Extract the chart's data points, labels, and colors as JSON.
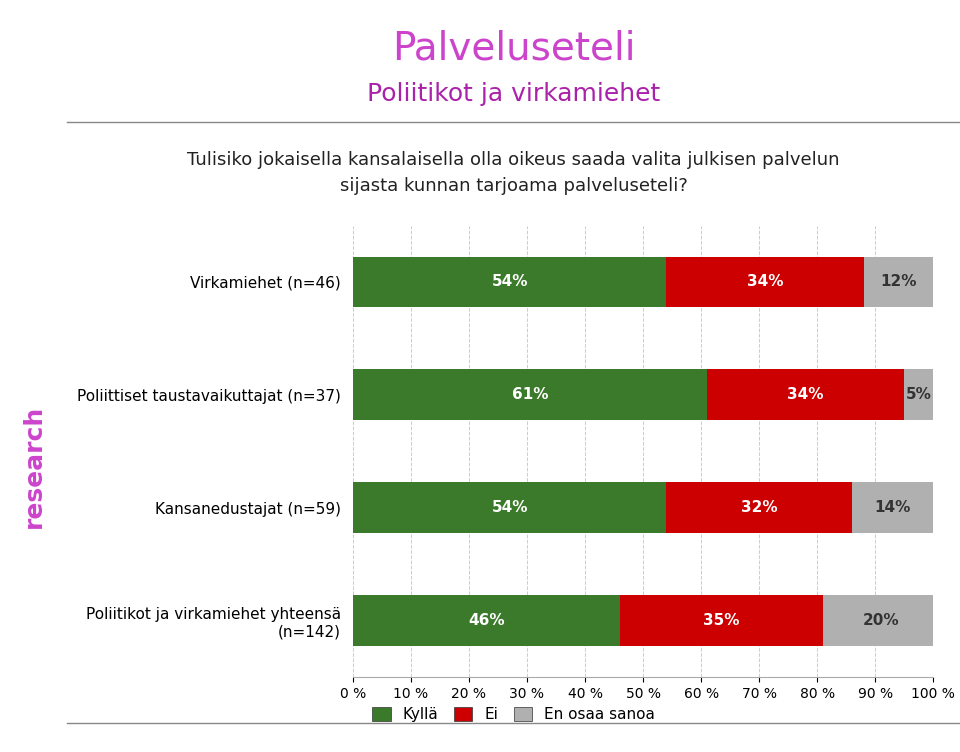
{
  "title": "Palveluseteli",
  "subtitle": "Poliitikot ja virkamiehet",
  "question": "Tulisiko jokaisella kansalaisella olla oikeus saada valita julkisen palvelun\nsijasta kunnan tarjoama palveluseteli?",
  "categories": [
    "Poliitikot ja virkamiehet yhteensä\n(n=142)",
    "Kansanedustajat (n=59)",
    "Poliittiset taustavaikuttajat (n=37)",
    "Virkamiehet (n=46)"
  ],
  "kylla": [
    54,
    61,
    54,
    46
  ],
  "ei": [
    34,
    34,
    32,
    35
  ],
  "en_osaa": [
    12,
    5,
    14,
    20
  ],
  "color_kylla": "#3a7a2a",
  "color_ei": "#cc0000",
  "color_en_osaa": "#b0b0b0",
  "color_title": "#cc44cc",
  "color_subtitle": "#aa22aa",
  "color_question": "#222222",
  "bg_color": "#ffffff",
  "left_panel_color": "#1a1a1a",
  "bar_height": 0.45,
  "title_fontsize": 28,
  "subtitle_fontsize": 18,
  "question_fontsize": 13,
  "label_fontsize": 11,
  "bar_label_fontsize": 11,
  "legend_fontsize": 11,
  "tick_fontsize": 10
}
